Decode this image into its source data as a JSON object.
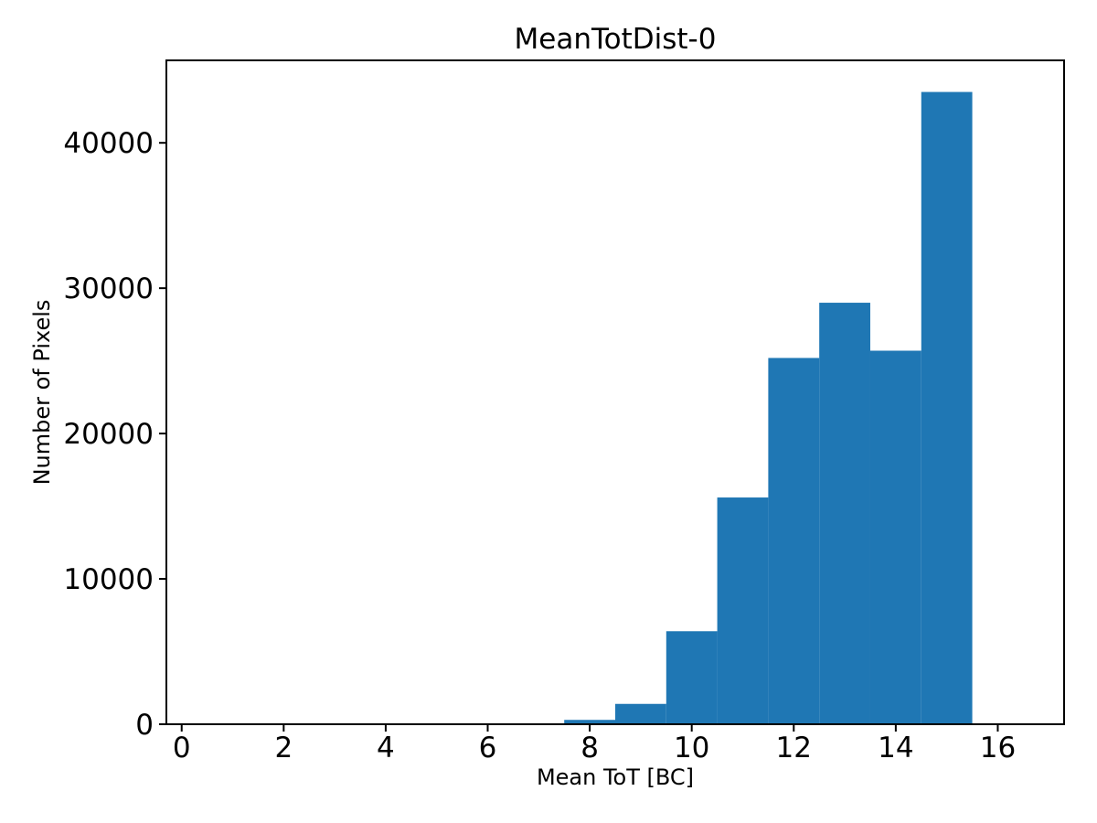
{
  "chart_data": {
    "type": "bar",
    "subtype": "histogram",
    "title": "MeanTotDist-0",
    "xlabel": "Mean ToT [BC]",
    "ylabel": "Number of Pixels",
    "bar_color": "#1f77b4",
    "axis_color": "#000000",
    "grid": false,
    "legend": null,
    "xlim": [
      -0.3,
      17.3
    ],
    "ylim": [
      0,
      45675
    ],
    "xticks": [
      0,
      2,
      4,
      6,
      8,
      10,
      12,
      14,
      16
    ],
    "yticks": [
      0,
      10000,
      20000,
      30000,
      40000
    ],
    "bin_edges": [
      0.5,
      1.5,
      2.5,
      3.5,
      4.5,
      5.5,
      6.5,
      7.5,
      8.5,
      9.5,
      10.5,
      11.5,
      12.5,
      13.5,
      14.5,
      15.5,
      16.5
    ],
    "counts": [
      0,
      0,
      0,
      0,
      0,
      0,
      0,
      300,
      1400,
      6400,
      15600,
      25200,
      29000,
      25700,
      43500,
      0
    ]
  }
}
